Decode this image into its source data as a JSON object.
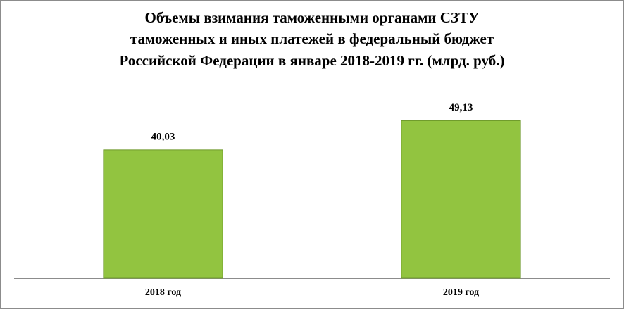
{
  "chart_data": {
    "type": "bar",
    "title": [
      "Объемы взимания таможенными органами СЗТУ",
      "таможенных и иных платежей в федеральный бюджет",
      "Российской Федерации в январе 2018-2019 гг. (млрд. руб.)"
    ],
    "categories": [
      "2018 год",
      "2019 год"
    ],
    "values": [
      40.03,
      49.13
    ],
    "value_labels": [
      "40,03",
      "49,13"
    ],
    "color": "#92c440",
    "ylim": [
      0,
      60
    ]
  }
}
